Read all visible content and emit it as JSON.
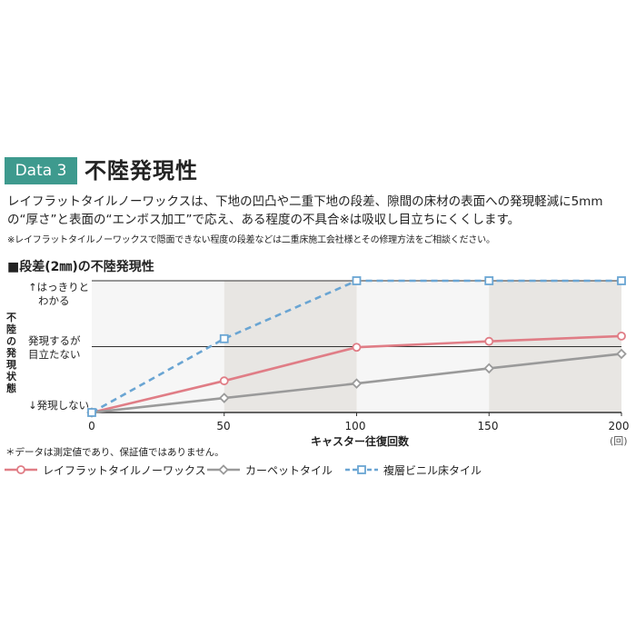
{
  "header": {
    "badge": "Data 3",
    "title": "不陸発現性",
    "desc_line1": "レイフラットタイルノーワックスは、下地の凹凸や二重下地の段差、隙間の床材の表面への発現軽減に5mm",
    "desc_line2": "の“厚さ”と表面の“エンボス加工”で応え、ある程度の不具合※は吸収し目立ちにくくします。",
    "note": "※レイフラットタイルノーワックスで隠面できない程度の段差などは二重床施工会社様とその修理方法をご相談ください。"
  },
  "colors": {
    "accent": "#3e9a8e",
    "series1": "#e07d86",
    "series2": "#9a9a9a",
    "series3": "#6aa5d3"
  },
  "chart_data": {
    "type": "line",
    "title": "■段差(2㎜)の不陸発現性",
    "ylabel": "不陸の発現状態",
    "y_levels": [
      {
        "value": 0,
        "label": "↓発現しない"
      },
      {
        "value": 1,
        "label_line1": "発現するが",
        "label_line2": "目立たない"
      },
      {
        "value": 2,
        "label_line1": "↑はっきりと",
        "label_line2": "わかる"
      }
    ],
    "ylim": [
      0,
      2
    ],
    "x": [
      0,
      50,
      100,
      150,
      200
    ],
    "x_ticks": [
      "0",
      "50",
      "100",
      "150",
      "200"
    ],
    "xlim": [
      0,
      200
    ],
    "xlabel": "キャスター往復回数",
    "x_unit": "(回)",
    "series": [
      {
        "name": "レイフラットタイルノーワックス",
        "values": [
          0,
          0.48,
          0.99,
          1.08,
          1.16
        ],
        "marker": "circle",
        "dash": false,
        "colorKey": "series1"
      },
      {
        "name": "カーペットタイル",
        "values": [
          0,
          0.22,
          0.44,
          0.67,
          0.89
        ],
        "marker": "diamond",
        "dash": false,
        "colorKey": "series2"
      },
      {
        "name": "複層ビニル床タイル",
        "values": [
          0,
          1.12,
          2,
          2,
          2
        ],
        "marker": "square",
        "dash": true,
        "colorKey": "series3"
      }
    ]
  },
  "footnote": "＊データは測定値であり、保証値ではありません。"
}
